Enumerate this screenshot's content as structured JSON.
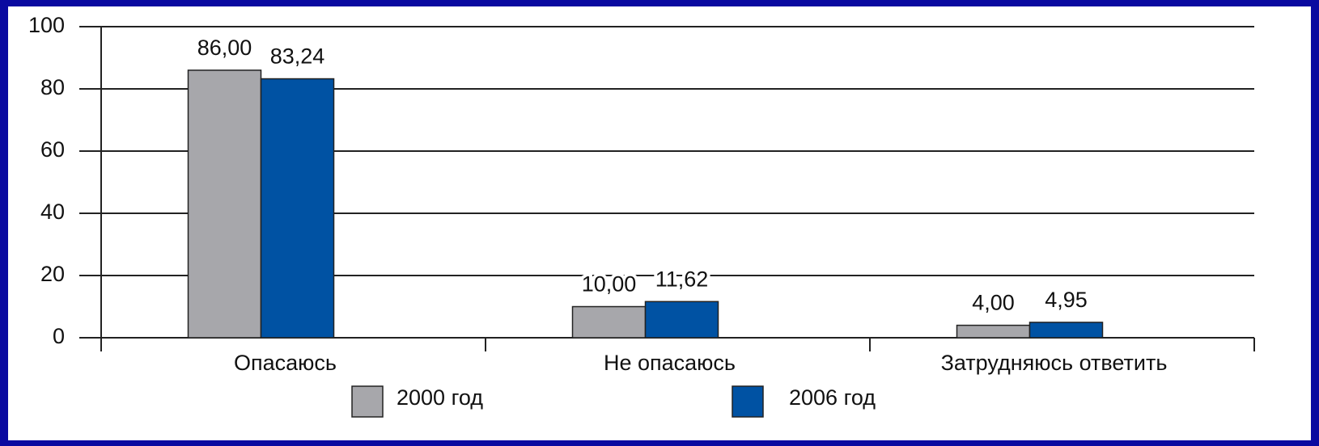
{
  "chart_data": {
    "type": "bar",
    "categories": [
      "Опасаюсь",
      "Не опасаюсь",
      "Затрудняюсь ответить"
    ],
    "series": [
      {
        "name": "2000 год",
        "color": "#a7a7ab",
        "values": [
          86.0,
          10.0,
          4.0
        ],
        "value_labels": [
          "86,00",
          "10,00",
          "4,00"
        ]
      },
      {
        "name": "2006 год",
        "color": "#0052a3",
        "values": [
          83.24,
          11.62,
          4.95
        ],
        "value_labels": [
          "83,24",
          "11,62",
          "4,95"
        ]
      }
    ],
    "ylim": [
      0,
      100
    ],
    "yticks": [
      0,
      20,
      40,
      60,
      80,
      100
    ],
    "grid": true
  }
}
